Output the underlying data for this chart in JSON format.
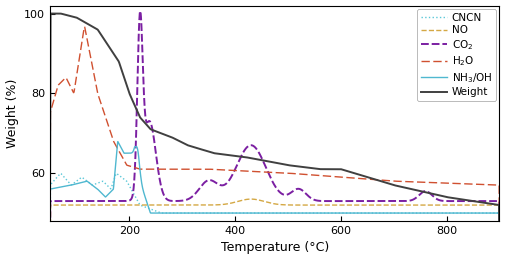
{
  "xlabel": "Temperature (°C)",
  "ylabel": "Weight (%)",
  "xlim": [
    50,
    900
  ],
  "ylim": [
    48,
    102
  ],
  "yticks": [
    60,
    80,
    100
  ],
  "xticks": [
    200,
    400,
    600,
    800
  ],
  "colors": {
    "CNCN": "#5bc8d8",
    "NO": "#d4a844",
    "CO2": "#7B1FA2",
    "H2O": "#d05030",
    "NH3OH": "#50b8d0",
    "Weight": "#404040"
  }
}
